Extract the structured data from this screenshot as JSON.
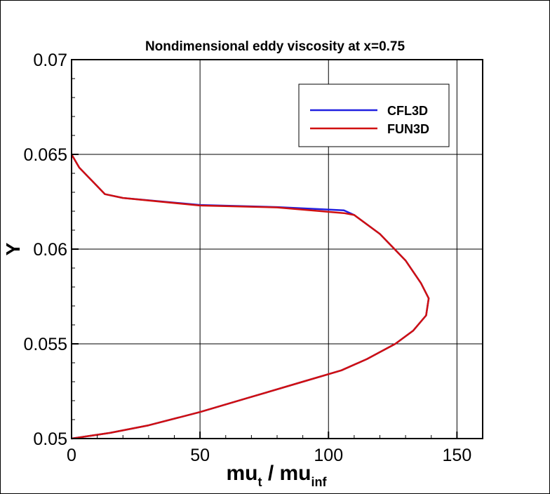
{
  "chart_data": {
    "type": "line",
    "title": "Nondimensional eddy viscosity at x=0.75",
    "xlabel_main": "mu",
    "xlabel_sub1": "t",
    "xlabel_mid": " / mu",
    "xlabel_sub2": "inf",
    "ylabel": "Y",
    "xlim": [
      0,
      160
    ],
    "ylim": [
      0.05,
      0.07
    ],
    "xticks": [
      0,
      50,
      100,
      150
    ],
    "xtick_labels": [
      "0",
      "50",
      "100",
      "150"
    ],
    "yticks": [
      0.05,
      0.055,
      0.06,
      0.065,
      0.07
    ],
    "ytick_labels": [
      "0.05",
      "0.055",
      "0.06",
      "0.065",
      "0.07"
    ],
    "grid": true,
    "legend_placement": "top-right",
    "series": [
      {
        "name": "CFL3D",
        "color": "#2020e0",
        "x": [
          0,
          3,
          8,
          13,
          20,
          50,
          80,
          106,
          110,
          120,
          130,
          136,
          139,
          138,
          133,
          126,
          115,
          105,
          90,
          70,
          50,
          30,
          15,
          0
        ],
        "y": [
          0.065,
          0.0643,
          0.0636,
          0.0629,
          0.0627,
          0.06233,
          0.06222,
          0.06205,
          0.0618,
          0.0608,
          0.0594,
          0.0582,
          0.0574,
          0.0565,
          0.0557,
          0.055,
          0.0542,
          0.0536,
          0.053,
          0.0522,
          0.0514,
          0.0507,
          0.0503,
          0.05
        ]
      },
      {
        "name": "FUN3D",
        "color": "#d01010",
        "x": [
          0,
          3,
          8,
          13,
          20,
          50,
          80,
          106,
          110,
          120,
          130,
          136,
          139,
          138,
          133,
          126,
          115,
          105,
          90,
          70,
          50,
          30,
          15,
          0
        ],
        "y": [
          0.065,
          0.0643,
          0.0636,
          0.0629,
          0.0627,
          0.0623,
          0.0622,
          0.0619,
          0.0618,
          0.0608,
          0.0594,
          0.0582,
          0.0574,
          0.0565,
          0.0557,
          0.055,
          0.0542,
          0.0536,
          0.053,
          0.0522,
          0.0514,
          0.0507,
          0.0503,
          0.05
        ]
      }
    ]
  }
}
